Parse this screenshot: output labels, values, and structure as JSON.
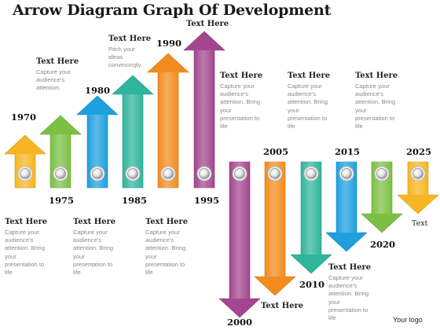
{
  "title": "Arrow Diagram Graph Of Development",
  "logo_text": "Your logo",
  "end_label": "Text",
  "colors": {
    "yellow": "#f7b521",
    "green": "#7bc043",
    "blue": "#1ea0df",
    "teal": "#2fb59c",
    "orange": "#f28c1e",
    "purple": "#a3468f"
  },
  "milestones": [
    {
      "year": "1970",
      "direction": "up",
      "color": "yellow"
    },
    {
      "year": "1975",
      "direction": "up",
      "color": "green"
    },
    {
      "year": "1980",
      "direction": "up",
      "color": "blue"
    },
    {
      "year": "1985",
      "direction": "up",
      "color": "teal"
    },
    {
      "year": "1990",
      "direction": "up",
      "color": "orange"
    },
    {
      "year": "1995",
      "direction": "up",
      "color": "purple"
    },
    {
      "year": "2000",
      "direction": "down",
      "color": "purple"
    },
    {
      "year": "2005",
      "direction": "down",
      "color": "orange"
    },
    {
      "year": "2010",
      "direction": "down",
      "color": "teal"
    },
    {
      "year": "2015",
      "direction": "down",
      "color": "blue"
    },
    {
      "year": "2020",
      "direction": "down",
      "color": "green"
    },
    {
      "year": "2025",
      "direction": "down",
      "color": "yellow"
    }
  ],
  "text_blocks": [
    {
      "heading": "Text Here",
      "lines": [
        "Capture your",
        "audience's",
        "attention."
      ]
    },
    {
      "heading": "Text Here",
      "lines": [
        "Pitch your",
        "ideas",
        "convincingly."
      ]
    },
    {
      "heading": "Text Here",
      "lines": []
    },
    {
      "heading": "Text Here",
      "lines": [
        "Capture your",
        "audience's",
        "attention. Bring",
        "your",
        "presentation to",
        "life"
      ]
    },
    {
      "heading": "Text Here",
      "lines": [
        "Capture your",
        "audience's",
        "attention. Bring",
        "your",
        "presentation to",
        "life"
      ]
    },
    {
      "heading": "Text Here",
      "lines": [
        "Capture your",
        "audience's",
        "attention. Bring",
        "your",
        "presentation to",
        "life"
      ]
    },
    {
      "heading": "Text Here",
      "lines": [
        "Capture your",
        "audience's",
        "attention. Bring",
        "your",
        "presentation to",
        "life"
      ]
    },
    {
      "heading": "Text Here",
      "lines": [
        "Capture your",
        "audience's",
        "attention. Bring",
        "your",
        "presentation to",
        "life"
      ]
    },
    {
      "heading": "Text Here",
      "lines": [
        "Capture your",
        "audience's",
        "attention. Bring",
        "your",
        "presentation to",
        "life"
      ]
    },
    {
      "heading": "Text Here",
      "lines": [
        "Capture your",
        "audience's",
        "attention. Bring",
        "your",
        "presentation to",
        "life"
      ]
    },
    {
      "heading": "Text Here",
      "lines": []
    }
  ]
}
